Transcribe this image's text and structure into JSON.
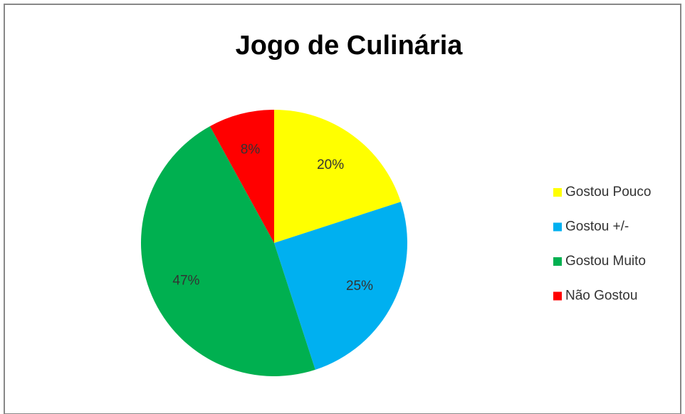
{
  "chart_data": {
    "type": "pie",
    "title": "Jogo de Culinária",
    "categories": [
      "Gostou Pouco",
      "Gostou +/-",
      "Gostou Muito",
      "Não Gostou"
    ],
    "values": [
      20,
      25,
      47,
      8
    ],
    "value_labels": [
      "20%",
      "25%",
      "47%",
      "8%"
    ],
    "colors": [
      "#ffff00",
      "#00b0f0",
      "#00b050",
      "#ff0000"
    ],
    "legend": "right"
  }
}
